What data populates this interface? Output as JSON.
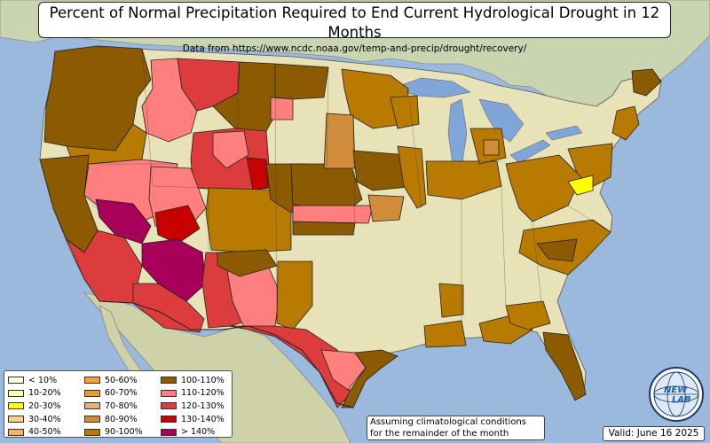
{
  "title": "Percent of Normal Precipitation Required to End Current Hydrological Drought in 12 Months",
  "subtitle": "Data from https://www.ncdc.noaa.gov/temp-and-precip/drought/recovery/",
  "legend": {
    "items": [
      {
        "label": "< 10%",
        "color": "#ffffe6"
      },
      {
        "label": "10-20%",
        "color": "#ffffb0"
      },
      {
        "label": "20-30%",
        "color": "#ffff00"
      },
      {
        "label": "30-40%",
        "color": "#ffd08c"
      },
      {
        "label": "40-50%",
        "color": "#ffb066"
      },
      {
        "label": "50-60%",
        "color": "#f5a335"
      },
      {
        "label": "60-70%",
        "color": "#f09a30"
      },
      {
        "label": "70-80%",
        "color": "#e3b07a"
      },
      {
        "label": "80-90%",
        "color": "#cf8c3a"
      },
      {
        "label": "90-100%",
        "color": "#b87a00"
      },
      {
        "label": "100-110%",
        "color": "#8c5a00"
      },
      {
        "label": "110-120%",
        "color": "#ff7f7f"
      },
      {
        "label": "120-130%",
        "color": "#dd3c3c"
      },
      {
        "label": "130-140%",
        "color": "#c80000"
      },
      {
        "label": "> 140%",
        "color": "#a8005a"
      }
    ]
  },
  "note": {
    "line1": "Assuming climatological conditions",
    "line2": "for the remainder of the month"
  },
  "valid": "Valid: June 16 2025",
  "logo": {
    "text1": "NEW",
    "text2": "LAB",
    "icon": "lab-globe-logo"
  }
}
